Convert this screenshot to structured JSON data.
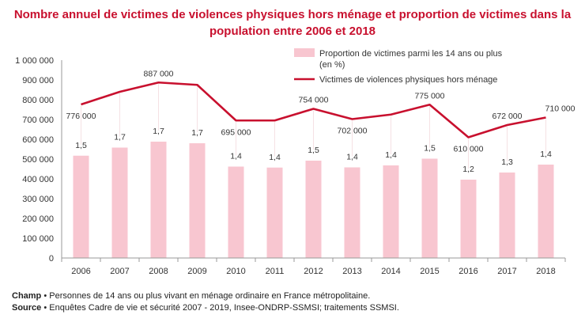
{
  "title_line1": "Nombre annuel de victimes de violences physiques hors ménage et proportion de victimes dans la",
  "title_line2": "population entre 2006 et 2018",
  "notes": {
    "champ_label": "Champ",
    "champ_text": " • Personnes de 14 ans ou plus vivant en ménage ordinaire en France métropolitaine.",
    "source_label": "Source",
    "source_text": " • Enquêtes Cadre de vie et sécurité 2007 - 2019, Insee-ONDRP-SSMSI; traitements SSMSI."
  },
  "colors": {
    "bar": "#f8c6d0",
    "line": "#c8102e",
    "title": "#c8102e",
    "axis": "#999999"
  },
  "chart_data": {
    "type": "bar",
    "title": "Nombre annuel de victimes de violences physiques hors ménage et proportion de victimes dans la population entre 2006 et 2018",
    "categories": [
      "2006",
      "2007",
      "2008",
      "2009",
      "2010",
      "2011",
      "2012",
      "2013",
      "2014",
      "2015",
      "2016",
      "2017",
      "2018"
    ],
    "ylim": [
      0,
      1000000
    ],
    "yticks": [
      "0",
      "100 000",
      "200 000",
      "300 000",
      "400 000",
      "500 000",
      "600 000",
      "700 000",
      "800 000",
      "900 000",
      "1 000 000"
    ],
    "grid": false,
    "legend_position": "top-right",
    "series": [
      {
        "name_line1": "Proportion de victimes parmi les 14 ans ou plus",
        "name_line2": "(en %)",
        "type": "bar",
        "values": [
          1.5,
          1.7,
          1.7,
          1.7,
          1.4,
          1.4,
          1.5,
          1.4,
          1.4,
          1.5,
          1.2,
          1.3,
          1.4
        ],
        "plotted_values": [
          517000,
          558000,
          588000,
          580000,
          462000,
          457000,
          492000,
          458000,
          468000,
          502000,
          396000,
          432000,
          472000
        ],
        "labels": [
          "1,5",
          "1,7",
          "1,7",
          "1,7",
          "1,4",
          "1,4",
          "1,5",
          "1,4",
          "1,4",
          "1,5",
          "1,2",
          "1,3",
          "1,4"
        ]
      },
      {
        "name": "Victimes de violences physiques hors ménage",
        "type": "line",
        "values": [
          776000,
          840000,
          887000,
          875000,
          695000,
          695000,
          754000,
          702000,
          725000,
          775000,
          610000,
          672000,
          710000
        ],
        "labels": [
          "776 000",
          "",
          "887 000",
          "",
          "695 000",
          "",
          "754 000",
          "702 000",
          "",
          "775 000",
          "610 000",
          "672 000",
          "710 000"
        ]
      }
    ]
  }
}
